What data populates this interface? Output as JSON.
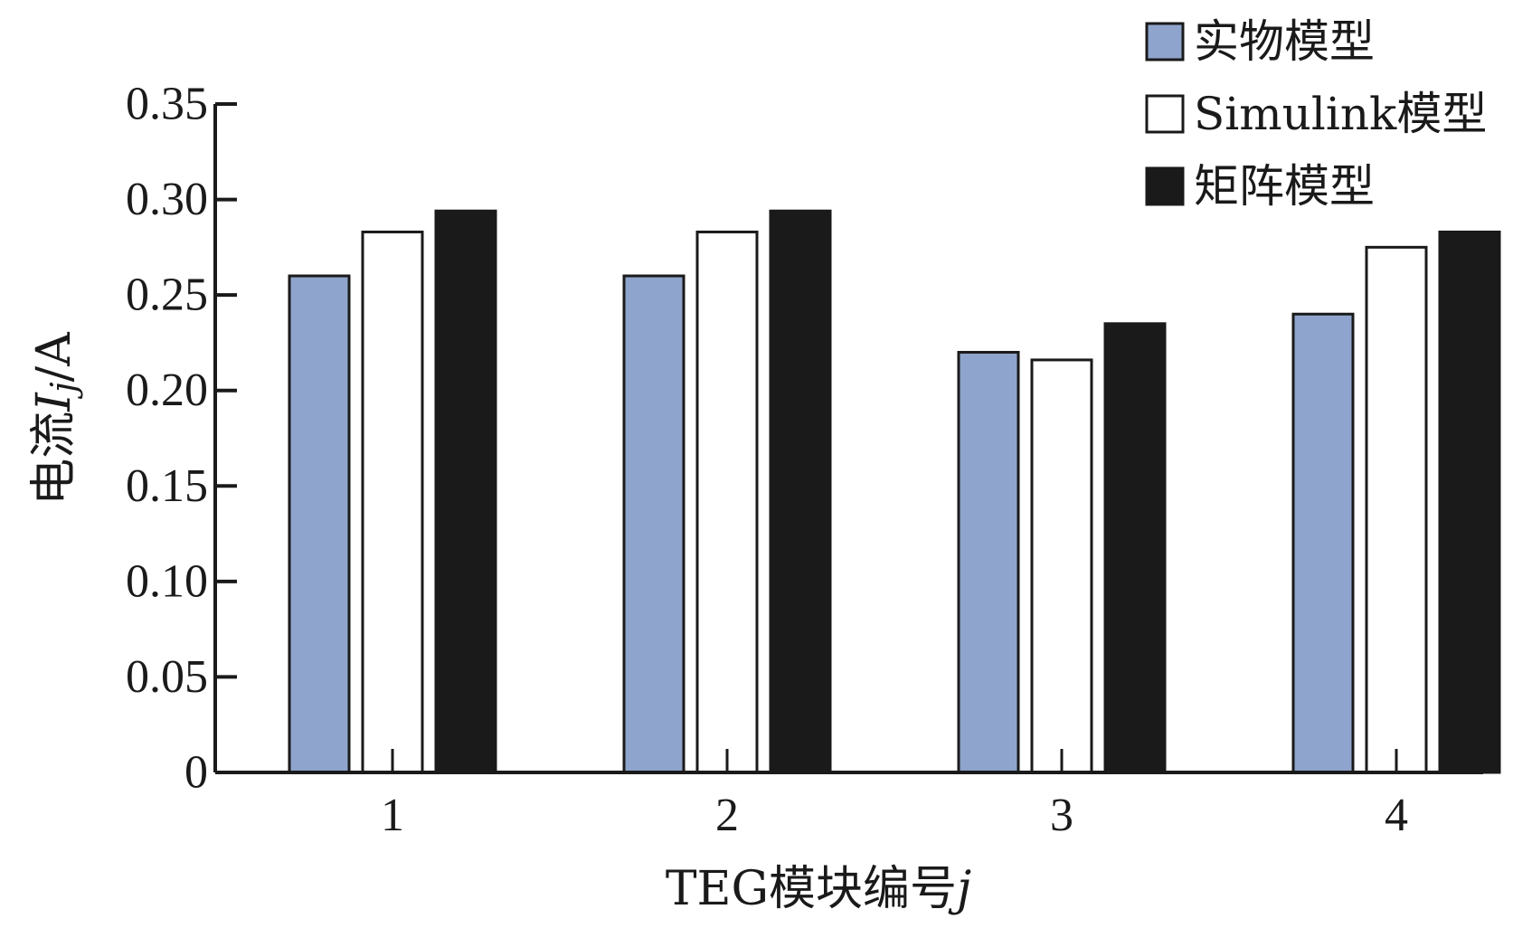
{
  "chart_data": {
    "type": "bar",
    "categories": [
      "1",
      "2",
      "3",
      "4"
    ],
    "series": [
      {
        "name": "实物模型",
        "color": "#8fa4cc",
        "values": [
          0.26,
          0.26,
          0.22,
          0.24
        ]
      },
      {
        "name": "Simulink模型",
        "color": "#ffffff",
        "values": [
          0.283,
          0.283,
          0.216,
          0.275
        ]
      },
      {
        "name": "矩阵模型",
        "color": "#1a1a1a",
        "values": [
          0.294,
          0.294,
          0.235,
          0.283
        ]
      }
    ],
    "ylim": [
      0,
      0.35
    ],
    "yticks": [
      "0",
      "0.05",
      "0.10",
      "0.15",
      "0.20",
      "0.25",
      "0.30",
      "0.35"
    ],
    "ylabel": {
      "prefix": "电流",
      "var": "I",
      "sub": "j",
      "suffix": "/A"
    },
    "xlabel": {
      "prefix": "TEG模块编号",
      "var": "j"
    },
    "legend_position": "top-right",
    "grid": false
  }
}
